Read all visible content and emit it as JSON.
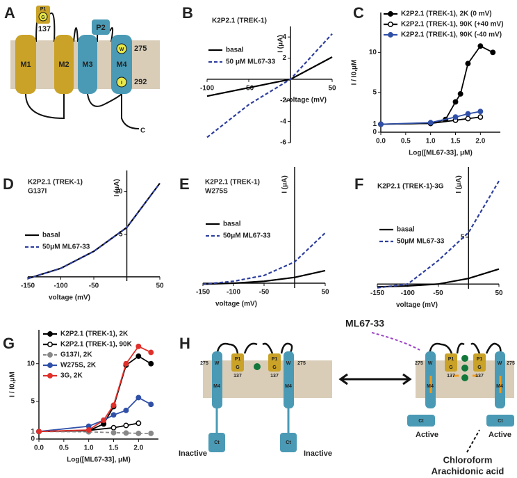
{
  "chart_data": [
    {
      "type": "line",
      "label": "B",
      "title": "K2P2.1 (TREK-1)",
      "xlabel": "voltage (mV)",
      "ylabel": "I (μA)",
      "x": [
        -100,
        -50,
        0,
        50
      ],
      "xlim": [
        -100,
        50
      ],
      "ylim": [
        -6,
        5
      ],
      "xticks": [
        -100,
        -50,
        50
      ],
      "yticks": [
        -6,
        -4,
        -2,
        2,
        4
      ],
      "series": [
        {
          "name": "basal",
          "color": "#000000",
          "dash": false,
          "values": [
            -1.6,
            -0.8,
            0,
            2.1
          ]
        },
        {
          "name": "50 μM ML67-33",
          "color": "#2e3f9e",
          "dash": true,
          "values": [
            -5.5,
            -2.4,
            0,
            4.3
          ]
        }
      ]
    },
    {
      "type": "line",
      "label": "C",
      "xlabel": "Log([ML67-33], μM)",
      "ylabel": "I / I0,μM",
      "xlim": [
        0,
        2.4
      ],
      "ylim": [
        0,
        15
      ],
      "xticks": [
        {
          "value": 0,
          "label": "0.0"
        },
        {
          "value": 0.5,
          "label": "0.5"
        },
        {
          "value": 1,
          "label": "1.0"
        },
        {
          "value": 1.5,
          "label": "1.5"
        },
        {
          "value": 2,
          "label": "2.0"
        }
      ],
      "yticks": [
        0,
        1,
        5,
        10
      ],
      "series": [
        {
          "name": "K2P2.1 (TREK-1), 2K (0 mV)",
          "color": "#000000",
          "marker": "filled",
          "x": [
            0,
            1,
            1.3,
            1.5,
            1.6,
            1.75,
            2,
            2.25
          ],
          "values": [
            1,
            1.1,
            1.6,
            3.8,
            4.8,
            8.6,
            10.8,
            10
          ]
        },
        {
          "name": "K2P2.1 (TREK-1), 90K (+40 mV)",
          "color": "#000000",
          "marker": "open",
          "x": [
            0,
            1,
            1.5,
            1.75,
            2
          ],
          "values": [
            1,
            1.1,
            1.5,
            1.7,
            1.9
          ]
        },
        {
          "name": "K2P2.1 (TREK-1), 90K (-40 mV)",
          "color": "#3050a8",
          "marker": "filled",
          "x": [
            0,
            1,
            1.5,
            1.75,
            2
          ],
          "values": [
            1,
            1.2,
            1.9,
            2.3,
            2.6
          ]
        }
      ]
    },
    {
      "type": "line",
      "label": "D",
      "title": "K2P2.1 (TREK-1)",
      "subtitle": "G137I",
      "xlabel": "voltage (mV)",
      "ylabel": "I (μA)",
      "x": [
        -150,
        -100,
        -50,
        0,
        50
      ],
      "xlim": [
        -150,
        50
      ],
      "ylim": [
        -0.5,
        12.5
      ],
      "xticks": [
        -150,
        -100,
        -50,
        50
      ],
      "yticks": [
        5,
        10
      ],
      "series": [
        {
          "name": "basal",
          "color": "#000000",
          "dash": false,
          "values": [
            -0.2,
            1,
            3,
            5.8,
            11
          ]
        },
        {
          "name": "50μM ML67-33",
          "color": "#2e3f9e",
          "dash": true,
          "values": [
            -0.2,
            1,
            3,
            5.8,
            11
          ]
        }
      ]
    },
    {
      "type": "line",
      "label": "E",
      "title": "K2P2.1 (TREK-1)",
      "subtitle": "W275S",
      "xlabel": "voltage (mV)",
      "ylabel": "I (μA)",
      "x": [
        -150,
        -100,
        -50,
        0,
        50
      ],
      "xlim": [
        -150,
        50
      ],
      "ylim": [
        -0.5,
        12
      ],
      "xticks": [
        -150,
        -100,
        -50,
        50
      ],
      "series": [
        {
          "name": "basal",
          "color": "#000000",
          "dash": false,
          "values": [
            -0.1,
            0,
            0.2,
            0.6,
            1.3
          ]
        },
        {
          "name": "50μM ML67-33",
          "color": "#2e3f9e",
          "dash": true,
          "values": [
            -0.1,
            0.2,
            0.8,
            2.2,
            5.2
          ]
        }
      ]
    },
    {
      "type": "line",
      "label": "F",
      "title": "K2P2.1 (TREK-1)-3G",
      "xlabel": "voltage (mV)",
      "ylabel": "I (μA)",
      "x": [
        -150,
        -100,
        -50,
        0,
        50
      ],
      "xlim": [
        -150,
        50
      ],
      "ylim": [
        -0.5,
        12.5
      ],
      "xticks": [
        -150,
        -100,
        -50,
        50
      ],
      "yticks": [
        5
      ],
      "series": [
        {
          "name": "basal",
          "color": "#000000",
          "dash": false,
          "values": [
            -0.3,
            -0.2,
            0,
            0.6,
            1.6
          ]
        },
        {
          "name": "50μM ML67-33",
          "color": "#2e3f9e",
          "dash": true,
          "values": [
            -0.4,
            0,
            2.5,
            5.5,
            11
          ]
        }
      ]
    },
    {
      "type": "line",
      "label": "G",
      "xlabel": "Log([ML67-33], μM)",
      "ylabel": "I / I0,μM",
      "xlim": [
        0,
        2.4
      ],
      "ylim": [
        0,
        14.5
      ],
      "xticks": [
        {
          "value": 0,
          "label": "0.0"
        },
        {
          "value": 0.5,
          "label": "0.5"
        },
        {
          "value": 1,
          "label": "1.0"
        },
        {
          "value": 1.5,
          "label": "1.5"
        },
        {
          "value": 2,
          "label": "2.0"
        }
      ],
      "yticks": [
        0,
        1,
        5,
        10
      ],
      "series": [
        {
          "name": "K2P2.1 (TREK-1), 2K",
          "color": "#000000",
          "marker": "filled",
          "x": [
            0,
            1,
            1.3,
            1.5,
            1.75,
            2,
            2.25
          ],
          "values": [
            1,
            1.1,
            2,
            4.3,
            9.8,
            11,
            10
          ]
        },
        {
          "name": "K2P2.1 (TREK-1), 90K",
          "color": "#000000",
          "marker": "open",
          "x": [
            0,
            1,
            1.5,
            1.75,
            2
          ],
          "values": [
            1,
            1.15,
            1.5,
            1.8,
            2.1
          ]
        },
        {
          "name": "G137I, 2K",
          "color": "#888888",
          "marker": "filled",
          "dash": true,
          "x": [
            0,
            1,
            1.5,
            1.75,
            2,
            2.25
          ],
          "values": [
            1,
            0.95,
            0.85,
            0.8,
            0.75,
            0.75
          ]
        },
        {
          "name": "W275S, 2K",
          "color": "#3050a8",
          "marker": "filled",
          "x": [
            0,
            1,
            1.3,
            1.5,
            1.75,
            2,
            2.25
          ],
          "values": [
            1,
            1.7,
            2.5,
            3.2,
            3.8,
            5.5,
            4.6
          ]
        },
        {
          "name": "3G, 2K",
          "color": "#e0302a",
          "marker": "filled",
          "x": [
            0,
            1,
            1.3,
            1.5,
            1.75,
            2,
            2.25
          ],
          "values": [
            1,
            1.2,
            2.5,
            4.5,
            10,
            12.3,
            11.5
          ]
        }
      ]
    }
  ],
  "diagram_a": {
    "label": "A",
    "p1": "P1",
    "g": "G",
    "n137": "137",
    "p2": "P2",
    "m1": "M1",
    "m2": "M2",
    "m3": "M3",
    "m4": "M4",
    "w": "W",
    "n275": "275",
    "i": "I",
    "n292": "292",
    "c": "C"
  },
  "diagram_h": {
    "label": "H",
    "ml": "ML67-33",
    "inactive": "Inactive",
    "active": "Active",
    "chloroform": "Chloroform",
    "arachidonic": "Arachidonic acid",
    "p1": "P1",
    "g": "G",
    "w": "W",
    "n137": "137",
    "n275": "275",
    "m4": "M4",
    "ct": "Ct"
  }
}
